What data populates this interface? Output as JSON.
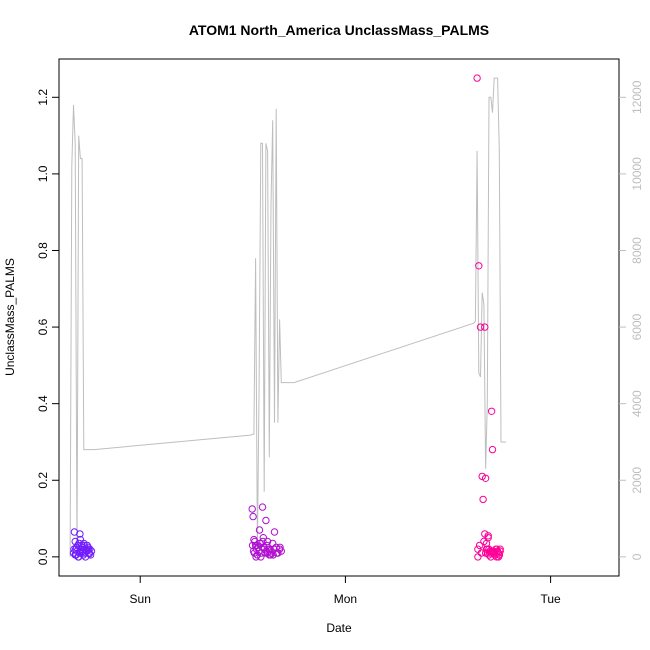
{
  "chart_data": {
    "type": "scatter",
    "title": "ATOM1 North_America UnclassMass_PALMS",
    "xlabel": "Date",
    "ylabel": "UnclassMass_PALMS",
    "x_ticks": [
      "Sun",
      "Mon",
      "Tue"
    ],
    "x_tick_hours": [
      0,
      24,
      48
    ],
    "xlim_hours": [
      -9.5,
      56.0
    ],
    "ylim": [
      -0.05,
      1.3
    ],
    "y_ticks": [
      "0.0",
      "0.2",
      "0.4",
      "0.6",
      "0.8",
      "1.0",
      "1.2"
    ],
    "y2lim": [
      -500,
      13000
    ],
    "y2_ticks": [
      "0",
      "2000",
      "4000",
      "6000",
      "8000",
      "10000",
      "12000"
    ],
    "y2_color": "#bebebe",
    "grid": false,
    "legend": "none",
    "points": {
      "name": "UnclassMass_PALMS",
      "marker": "open-circle",
      "x_hours": [
        -7.8,
        -7.7,
        -7.6,
        -7.55,
        -7.5,
        -7.4,
        -7.3,
        -7.2,
        -7.1,
        -7.05,
        -7.0,
        -6.9,
        -6.8,
        -6.7,
        -6.65,
        -6.6,
        -6.5,
        -6.4,
        -6.3,
        -6.2,
        -6.1,
        -6.0,
        -5.9,
        -5.8,
        -5.7,
        -7.75,
        -7.25,
        -6.85,
        -6.45,
        -6.05,
        -7.6,
        -6.95,
        -6.55,
        -6.25,
        -5.95,
        -7.45,
        -7.15,
        -6.75,
        13.1,
        13.2,
        13.3,
        13.35,
        13.4,
        13.5,
        13.6,
        13.7,
        13.8,
        13.9,
        14.0,
        14.1,
        14.2,
        14.3,
        14.4,
        14.5,
        14.6,
        14.7,
        14.8,
        14.9,
        15.0,
        15.1,
        15.2,
        15.3,
        15.5,
        15.7,
        15.9,
        16.1,
        16.3,
        16.5,
        13.15,
        13.55,
        13.95,
        14.35,
        14.75,
        15.15,
        15.55,
        15.95,
        16.35,
        13.25,
        13.65,
        14.05,
        14.45,
        14.85,
        15.25,
        15.65,
        39.4,
        39.5,
        39.6,
        39.7,
        39.8,
        40.0,
        40.1,
        40.3,
        40.4,
        40.6,
        40.7,
        40.8,
        40.9,
        41.0,
        41.1,
        41.2,
        41.3,
        41.4,
        41.5,
        41.6,
        41.7,
        41.8,
        41.9,
        42.0,
        42.1,
        39.5,
        39.9,
        40.2,
        40.5,
        40.8,
        41.1,
        41.4,
        41.7,
        42.0,
        40.3,
        40.4,
        40.5,
        40.6,
        40.7,
        40.9,
        41.3,
        41.5,
        41.9,
        42.1
      ],
      "y": [
        0.01,
        0.065,
        0.04,
        0.02,
        0.005,
        0.015,
        0.03,
        0.0,
        0.01,
        0.06,
        0.045,
        0.02,
        0.025,
        0.01,
        0.005,
        0.035,
        0.02,
        0.0,
        0.015,
        0.03,
        0.025,
        0.01,
        0.02,
        0.005,
        0.015,
        0.02,
        0.0,
        0.03,
        0.01,
        0.02,
        0.005,
        0.012,
        0.03,
        0.018,
        0.008,
        0.025,
        0.035,
        0.015,
        0.125,
        0.105,
        0.045,
        0.01,
        0.04,
        0.03,
        0.02,
        0.005,
        0.025,
        0.015,
        0.035,
        0.0,
        0.01,
        0.13,
        0.05,
        0.02,
        0.01,
        0.095,
        0.03,
        0.04,
        0.02,
        0.005,
        0.015,
        0.01,
        0.035,
        0.065,
        0.025,
        0.01,
        0.02,
        0.015,
        0.03,
        0.0,
        0.07,
        0.04,
        0.015,
        0.02,
        0.005,
        0.01,
        0.025,
        0.015,
        0.03,
        0.035,
        0.025,
        0.01,
        0.005,
        0.02,
        1.25,
        0.02,
        0.76,
        0.03,
        0.6,
        0.21,
        0.15,
        0.06,
        0.01,
        0.02,
        0.05,
        0.02,
        0.01,
        0.0,
        0.38,
        0.28,
        0.015,
        0.01,
        0.005,
        0.02,
        0.0,
        0.015,
        0.01,
        0.005,
        0.02,
        0.0,
        0.01,
        0.04,
        0.02,
        0.005,
        0.015,
        0.01,
        0.02,
        0.005,
        0.6,
        0.205,
        0.035,
        0.01,
        0.055,
        0.015,
        0.01,
        0.005,
        0.0,
        0.015
      ]
    },
    "line": {
      "name": "secondary",
      "color": "#bebebe",
      "x_hours": [
        -8.2,
        -8.0,
        -7.8,
        -7.6,
        -7.4,
        -7.2,
        -7.0,
        -6.8,
        -6.6,
        -6.4,
        -6.2,
        -6.0,
        -5.8,
        -5.6,
        -5.4,
        12.9,
        13.1,
        13.3,
        13.5,
        13.7,
        13.9,
        14.1,
        14.3,
        14.5,
        14.7,
        14.9,
        15.1,
        15.3,
        15.5,
        15.7,
        15.9,
        16.1,
        16.3,
        16.5,
        16.7,
        16.9,
        17.1,
        17.3,
        17.5,
        17.7,
        18.0,
        39.0,
        39.2,
        39.4,
        39.6,
        39.8,
        40.0,
        40.2,
        40.4,
        40.6,
        40.8,
        41.0,
        41.2,
        41.4,
        41.6,
        41.8,
        42.0,
        42.2,
        42.4,
        42.6,
        42.8
      ],
      "y2": [
        0,
        10200,
        11800,
        10800,
        200,
        11000,
        10400,
        10400,
        2800,
        2800,
        2800,
        2800,
        2800,
        2800,
        2800,
        3180,
        3200,
        3200,
        7800,
        200,
        4500,
        10800,
        10800,
        1700,
        10800,
        10600,
        2600,
        9200,
        11400,
        3500,
        11700,
        3500,
        6200,
        4550,
        4550,
        4550,
        4550,
        4550,
        4550,
        4550,
        4550,
        6100,
        6150,
        10600,
        4800,
        4700,
        6900,
        6600,
        2300,
        4000,
        12000,
        12000,
        11600,
        12500,
        12500,
        12500,
        10600,
        3000,
        3000,
        3000,
        3000
      ]
    }
  }
}
